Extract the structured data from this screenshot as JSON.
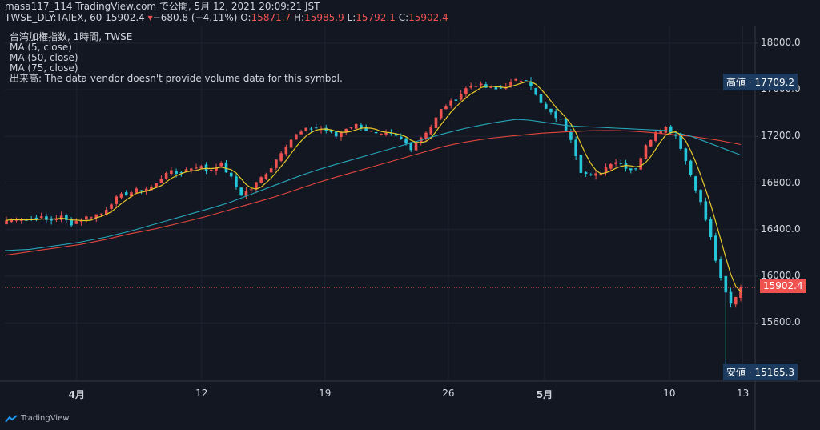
{
  "header": {
    "line1": "masa117_114 TradingView.com で公開, 5月 12, 2021 20:09:21 JST",
    "symbol": "TWSE_DLY:TAIEX, 60",
    "last": "15902.4",
    "change": "−680.8 (−4.11%)",
    "o_label": "O:",
    "o_val": "15871.7",
    "h_label": "H:",
    "h_val": "15985.9",
    "l_label": "L:",
    "l_val": "15792.1",
    "c_label": "C:",
    "c_val": "15902.4"
  },
  "legend": [
    "台湾加権指数, 1時間, TWSE",
    "MA (5, close)",
    "MA (50, close)",
    "MA (75, close)",
    "出来高: The data vendor doesn't provide volume data for this symbol."
  ],
  "tags": {
    "high": "高値 · 17709.2",
    "low": "安値 · 15165.3",
    "last": "15902.4"
  },
  "footer": {
    "brand": "TradingView"
  },
  "colors": {
    "bg": "#131722",
    "up": "#ef5350",
    "down": "#26c6da",
    "ma5": "#e5c829",
    "ma50": "#26a6b8",
    "ma75": "#e0453d"
  },
  "chart_data": {
    "type": "candlestick",
    "y_ticks": [
      "18000.0",
      "17600.0",
      "17200.0",
      "16800.0",
      "16400.0",
      "16000.0",
      "15600.0"
    ],
    "ylim": [
      15100,
      18150
    ],
    "x_ticks": [
      {
        "label": "4月",
        "bold": true,
        "t": 0.098
      },
      {
        "label": "12",
        "bold": false,
        "t": 0.268
      },
      {
        "label": "19",
        "bold": false,
        "t": 0.436
      },
      {
        "label": "26",
        "bold": false,
        "t": 0.604
      },
      {
        "label": "5月",
        "bold": true,
        "t": 0.735
      },
      {
        "label": "10",
        "bold": false,
        "t": 0.905
      },
      {
        "label": "13",
        "bold": false,
        "t": 1.005
      }
    ],
    "close_path": [
      16480,
      16500,
      16480,
      16510,
      16470,
      16520,
      16450,
      16490,
      16520,
      16540,
      16650,
      16700,
      16730,
      16750,
      16780,
      16900,
      16880,
      16920,
      16950,
      16900,
      16980,
      16860,
      16700,
      16750,
      16850,
      16950,
      17100,
      17200,
      17250,
      17280,
      17250,
      17200,
      17280,
      17300,
      17250,
      17200,
      17220,
      17180,
      17100,
      17200,
      17300,
      17450,
      17500,
      17600,
      17650,
      17620,
      17600,
      17640,
      17680,
      17700,
      17500,
      17400,
      17350,
      17200,
      16900,
      16850,
      16900,
      17000,
      16950,
      16900,
      17100,
      17250,
      17280,
      17200,
      16950,
      16700,
      16400,
      16000,
      15750,
      15902.4
    ],
    "ma50_path": [
      16220,
      16230,
      16260,
      16290,
      16330,
      16380,
      16440,
      16500,
      16560,
      16620,
      16700,
      16780,
      16860,
      16930,
      16990,
      17050,
      17110,
      17170,
      17230,
      17280,
      17320,
      17350,
      17320,
      17290,
      17280,
      17270,
      17260,
      17250,
      17200,
      17120,
      17040
    ],
    "ma75_path": [
      16180,
      16210,
      16240,
      16270,
      16310,
      16360,
      16400,
      16450,
      16500,
      16560,
      16620,
      16680,
      16750,
      16820,
      16880,
      16940,
      17000,
      17060,
      17120,
      17160,
      17190,
      17210,
      17230,
      17240,
      17250,
      17250,
      17240,
      17220,
      17200,
      17170,
      17130
    ]
  }
}
